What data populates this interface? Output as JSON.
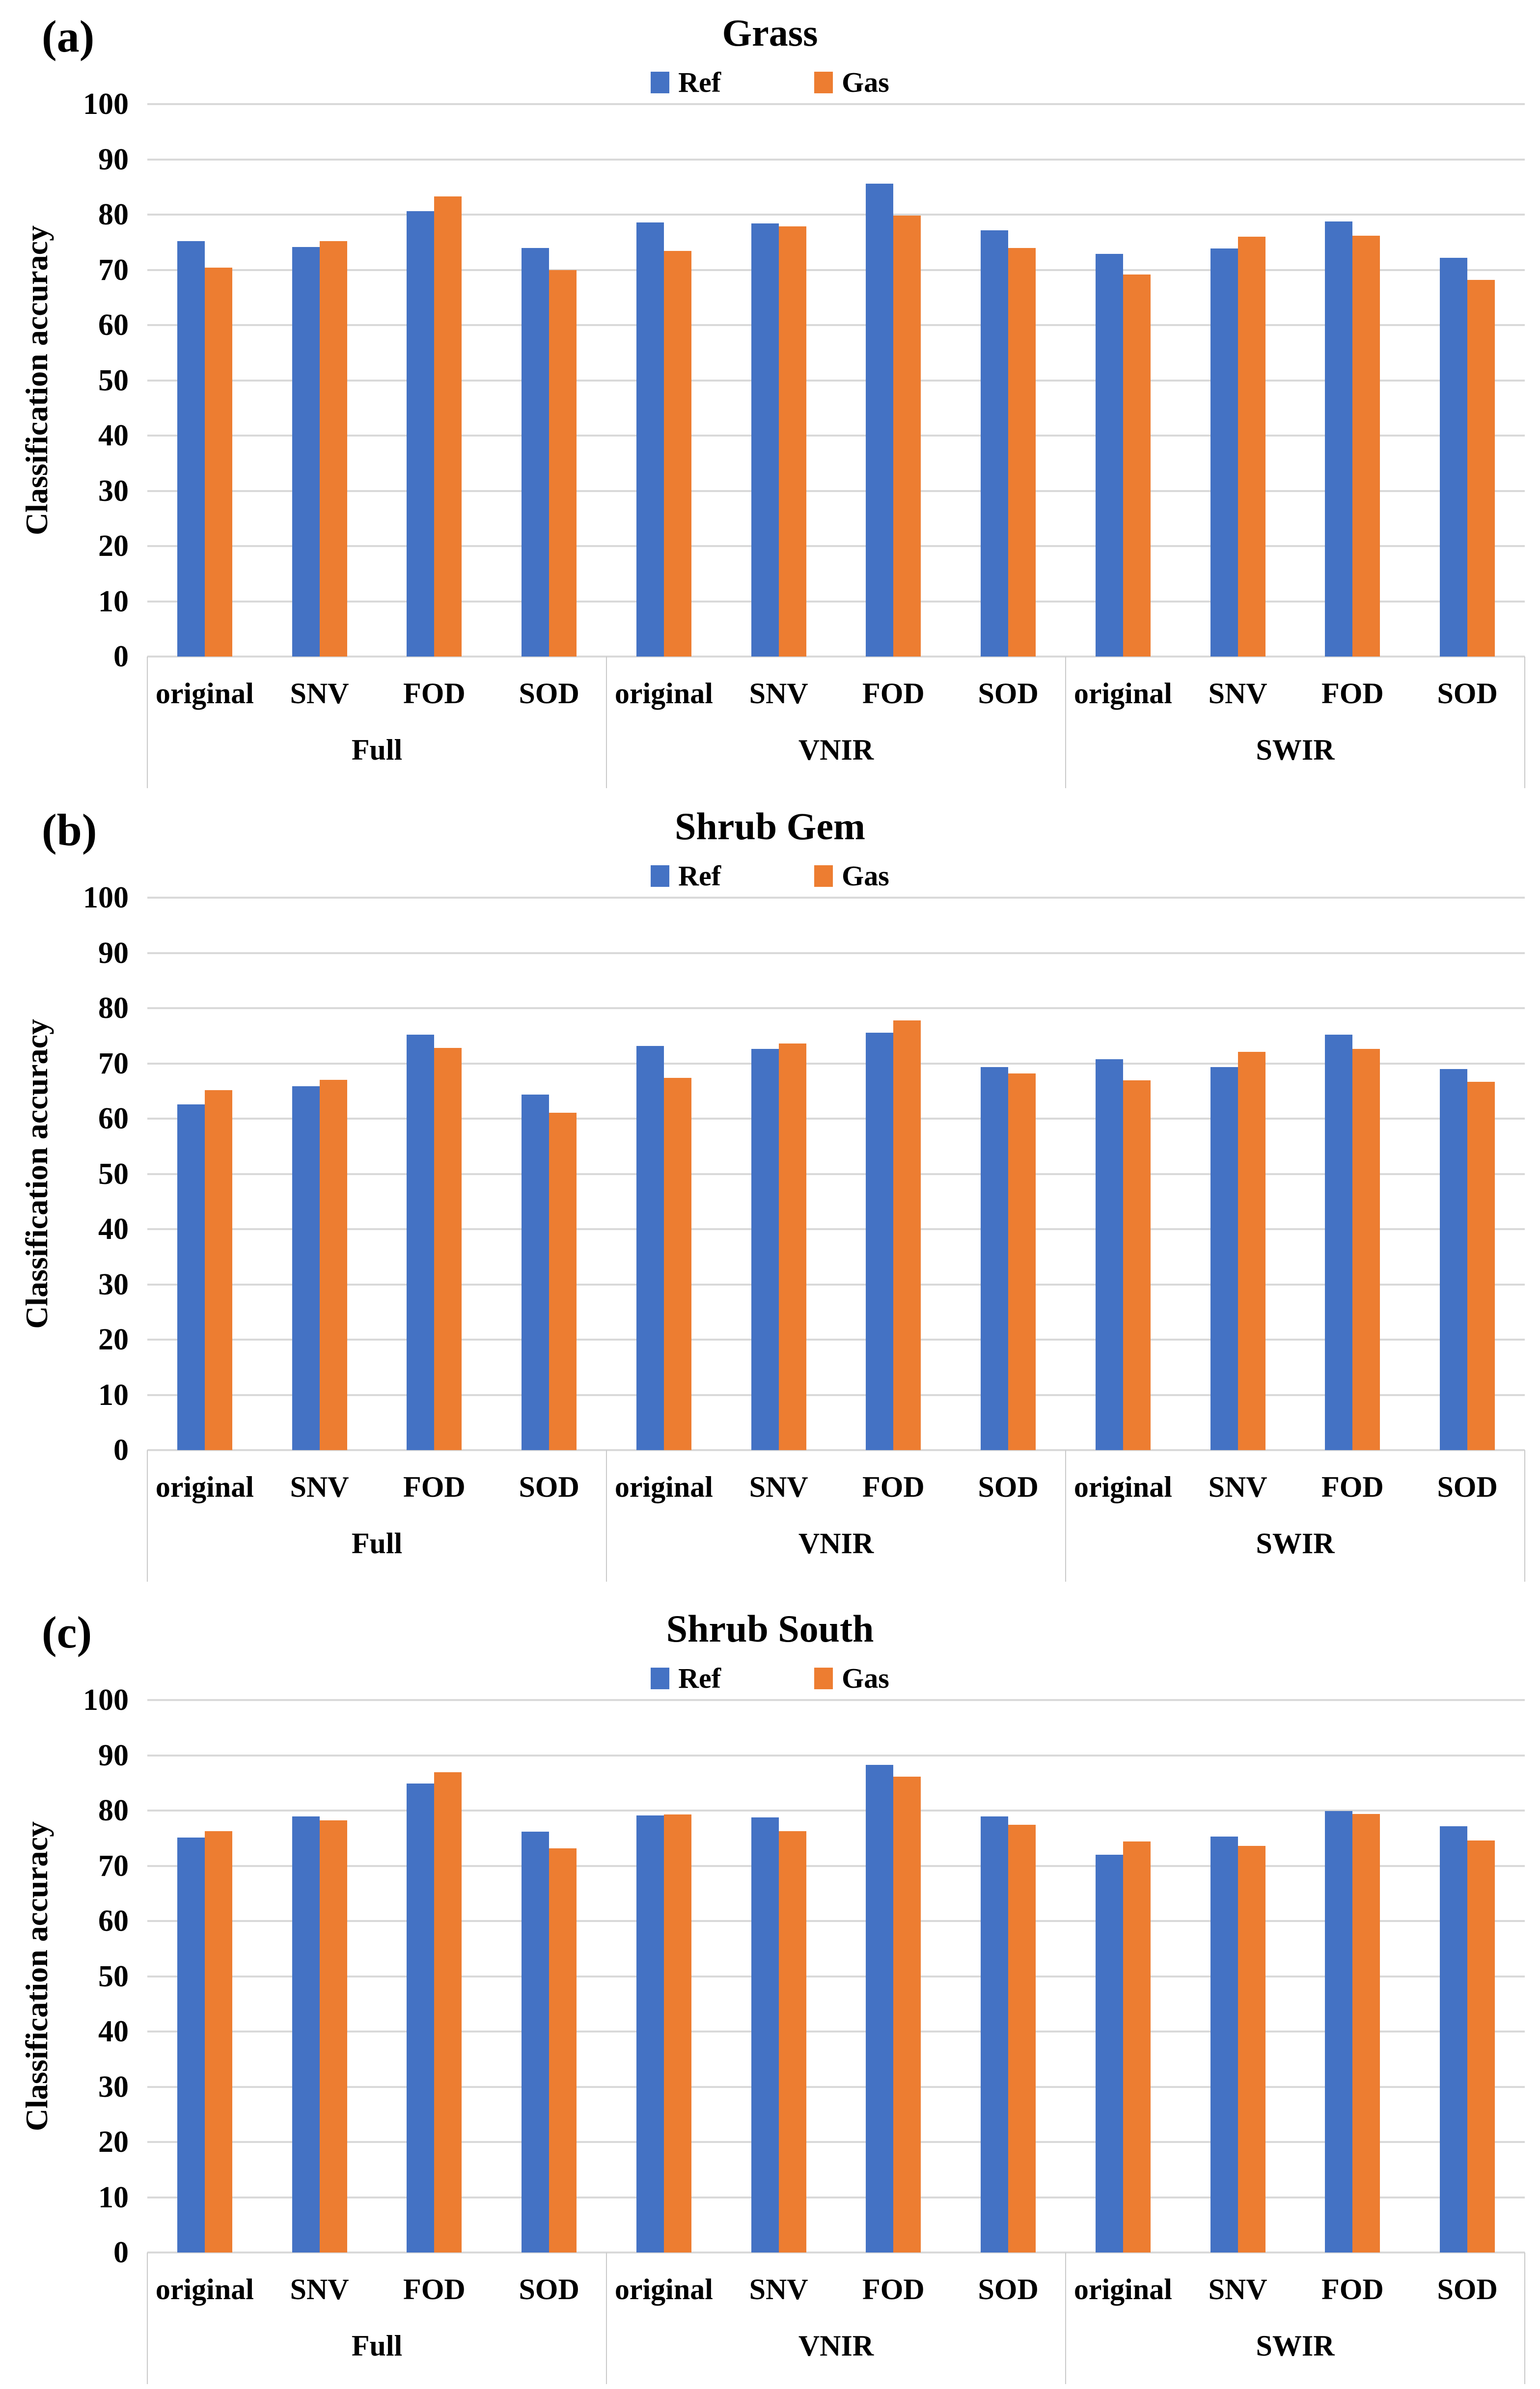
{
  "figure_title": "Classification accuracy bar charts",
  "colors": {
    "ref": "#4472C4",
    "gas": "#ED7D31",
    "gridline": "#D9D9D9",
    "separator": "#C9C9C9",
    "text": "#000000",
    "background": "#FFFFFF"
  },
  "chart_data": [
    {
      "type": "bar",
      "panel_label": "(a)",
      "title": "Grass",
      "ylabel": "Classification accuracy",
      "xlabel": "",
      "ylim": [
        0,
        100
      ],
      "yticks": [
        0,
        10,
        20,
        30,
        40,
        50,
        60,
        70,
        80,
        90,
        100
      ],
      "grid": true,
      "legend_position": "top",
      "group_labels": [
        "Full",
        "VNIR",
        "SWIR"
      ],
      "categories": [
        "original",
        "SNV",
        "FOD",
        "SOD",
        "original",
        "SNV",
        "FOD",
        "SOD",
        "original",
        "SNV",
        "FOD",
        "SOD"
      ],
      "series": [
        {
          "name": "Ref",
          "color": "#4472C4",
          "values": [
            75.2,
            74.1,
            80.6,
            74.0,
            78.6,
            78.4,
            85.6,
            77.2,
            72.9,
            73.9,
            78.8,
            72.2
          ]
        },
        {
          "name": "Gas",
          "color": "#ED7D31",
          "values": [
            70.4,
            75.2,
            83.3,
            70.0,
            73.4,
            77.9,
            79.8,
            74.0,
            69.2,
            76.0,
            76.2,
            68.2
          ]
        }
      ]
    },
    {
      "type": "bar",
      "panel_label": "(b)",
      "title": "Shrub Gem",
      "ylabel": "Classification accuracy",
      "xlabel": "",
      "ylim": [
        0,
        100
      ],
      "yticks": [
        0,
        10,
        20,
        30,
        40,
        50,
        60,
        70,
        80,
        90,
        100
      ],
      "grid": true,
      "legend_position": "top",
      "group_labels": [
        "Full",
        "VNIR",
        "SWIR"
      ],
      "categories": [
        "original",
        "SNV",
        "FOD",
        "SOD",
        "original",
        "SNV",
        "FOD",
        "SOD",
        "original",
        "SNV",
        "FOD",
        "SOD"
      ],
      "series": [
        {
          "name": "Ref",
          "color": "#4472C4",
          "values": [
            62.6,
            65.9,
            75.2,
            64.4,
            73.2,
            72.6,
            75.6,
            69.3,
            70.8,
            69.3,
            75.2,
            69.0
          ]
        },
        {
          "name": "Gas",
          "color": "#ED7D31",
          "values": [
            65.2,
            67.0,
            72.8,
            61.1,
            67.4,
            73.6,
            77.8,
            68.2,
            66.9,
            72.1,
            72.6,
            66.7
          ]
        }
      ]
    },
    {
      "type": "bar",
      "panel_label": "(c)",
      "title": "Shrub South",
      "ylabel": "Classification accuracy",
      "xlabel": "",
      "ylim": [
        0,
        100
      ],
      "yticks": [
        0,
        10,
        20,
        30,
        40,
        50,
        60,
        70,
        80,
        90,
        100
      ],
      "grid": true,
      "legend_position": "top",
      "group_labels": [
        "Full",
        "VNIR",
        "SWIR"
      ],
      "categories": [
        "original",
        "SNV",
        "FOD",
        "SOD",
        "original",
        "SNV",
        "FOD",
        "SOD",
        "original",
        "SNV",
        "FOD",
        "SOD"
      ],
      "series": [
        {
          "name": "Ref",
          "color": "#4472C4",
          "values": [
            75.1,
            78.9,
            84.9,
            76.2,
            79.1,
            78.8,
            88.3,
            78.9,
            72.0,
            75.3,
            79.9,
            77.2
          ]
        },
        {
          "name": "Gas",
          "color": "#ED7D31",
          "values": [
            76.3,
            78.2,
            86.9,
            73.2,
            79.3,
            76.3,
            86.1,
            77.4,
            74.4,
            73.6,
            79.4,
            74.6
          ]
        }
      ]
    }
  ]
}
